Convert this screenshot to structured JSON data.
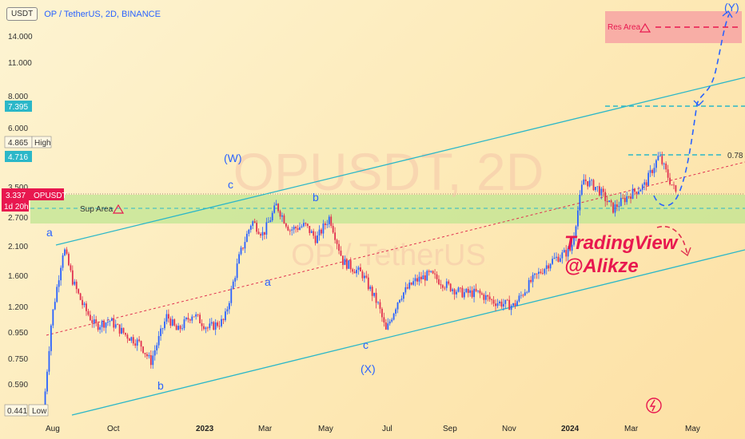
{
  "header": {
    "currency": "USDT",
    "title": "OP / TetherUS, 2D, BINANCE"
  },
  "watermark": {
    "symbol": "OPUSDT, 2D",
    "name": "OP / TetherUS"
  },
  "price_axis": {
    "ticks": [
      "14.000",
      "11.000",
      "8.000",
      "6.000",
      "3.500",
      "2.700",
      "2.100",
      "1.600",
      "1.200",
      "0.950",
      "0.750",
      "0.590"
    ],
    "badges": {
      "target": "7.395",
      "high_value": "4.865",
      "high_label": "High",
      "level_078": "4.716",
      "current_price": "3.337",
      "current_symbol": "OPUSDT",
      "countdown": "1d 20h",
      "low_value": "0.441",
      "low_label": "Low"
    }
  },
  "time_axis": [
    "Aug",
    "Oct",
    "2023",
    "Mar",
    "May",
    "Jul",
    "Sep",
    "Nov",
    "2024",
    "Mar",
    "May"
  ],
  "annotations": {
    "res_area": "Res Area",
    "sup_area": "Sup Area",
    "fib": "0.78",
    "wave_W": "(W)",
    "wave_X": "(X)",
    "wave_Y": "(Y)",
    "a1": "a",
    "b1": "b",
    "c1": "c",
    "a2": "a",
    "b2": "b",
    "c2": "c",
    "brand1": "TradingView",
    "brand2": "@Alikze"
  },
  "colors": {
    "up": "#2962ff",
    "down": "#e03050",
    "channel": "#2bb7c8",
    "sup_zone": "#b7e08a",
    "res_zone": "#f8a7a0",
    "brand": "#e8174f",
    "wave_label": "#2962ff",
    "countdown_bg": "#e8174f"
  },
  "chart_data": {
    "type": "candlestick",
    "title": "OP / TetherUS, 2D, BINANCE",
    "x_range": [
      "2022-07",
      "2024-05"
    ],
    "y_scale": "log",
    "ylim": [
      0.44,
      16.0
    ],
    "current_price": 3.337,
    "series_close_path": [
      [
        "2022-07-12",
        0.45
      ],
      [
        "2022-07-20",
        1.05
      ],
      [
        "2022-08-01",
        2.05
      ],
      [
        "2022-08-10",
        1.5
      ],
      [
        "2022-08-20",
        1.2
      ],
      [
        "2022-09-01",
        1.0
      ],
      [
        "2022-09-15",
        1.05
      ],
      [
        "2022-10-01",
        0.92
      ],
      [
        "2022-10-15",
        0.85
      ],
      [
        "2022-10-25",
        0.72
      ],
      [
        "2022-11-10",
        1.1
      ],
      [
        "2022-11-20",
        0.95
      ],
      [
        "2022-12-05",
        1.12
      ],
      [
        "2022-12-20",
        0.98
      ],
      [
        "2023-01-05",
        1.05
      ],
      [
        "2023-01-20",
        1.9
      ],
      [
        "2023-02-01",
        2.6
      ],
      [
        "2023-02-12",
        2.3
      ],
      [
        "2023-02-25",
        3.0
      ],
      [
        "2023-03-10",
        2.4
      ],
      [
        "2023-03-25",
        2.5
      ],
      [
        "2023-04-05",
        2.2
      ],
      [
        "2023-04-18",
        2.7
      ],
      [
        "2023-05-01",
        1.8
      ],
      [
        "2023-05-20",
        1.6
      ],
      [
        "2023-06-05",
        1.2
      ],
      [
        "2023-06-12",
        0.95
      ],
      [
        "2023-06-25",
        1.3
      ],
      [
        "2023-07-10",
        1.5
      ],
      [
        "2023-07-25",
        1.6
      ],
      [
        "2023-08-10",
        1.45
      ],
      [
        "2023-08-25",
        1.35
      ],
      [
        "2023-09-10",
        1.35
      ],
      [
        "2023-09-25",
        1.25
      ],
      [
        "2023-10-15",
        1.2
      ],
      [
        "2023-11-01",
        1.5
      ],
      [
        "2023-11-20",
        1.8
      ],
      [
        "2023-12-10",
        2.0
      ],
      [
        "2023-12-22",
        3.8
      ],
      [
        "2024-01-05",
        3.5
      ],
      [
        "2024-01-20",
        2.9
      ],
      [
        "2024-02-05",
        3.3
      ],
      [
        "2024-02-20",
        3.6
      ],
      [
        "2024-03-05",
        4.7
      ],
      [
        "2024-03-15",
        3.8
      ],
      [
        "2024-03-22",
        3.337
      ]
    ],
    "annotations": {
      "sup_area": [
        2.6,
        3.3
      ],
      "res_area": [
        12.7,
        16.5
      ],
      "fib_078": 4.716,
      "target": 7.395
    }
  }
}
